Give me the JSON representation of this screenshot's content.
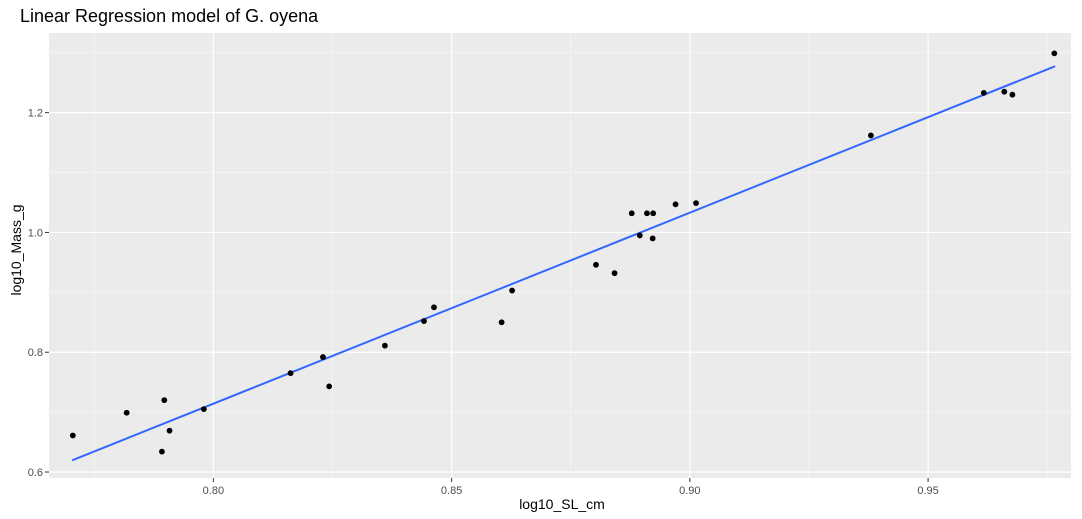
{
  "chart_data": {
    "type": "scatter",
    "title": "Linear Regression model of G. oyena",
    "xlabel": "log10_SL_cm",
    "ylabel": "log10_Mass_g",
    "xlim": [
      0.7655,
      0.98
    ],
    "ylim": [
      0.59,
      1.333
    ],
    "x_ticks": [
      0.8,
      0.85,
      0.9,
      0.95
    ],
    "x_tick_labels": [
      "0.80",
      "0.85",
      "0.90",
      "0.95"
    ],
    "y_ticks": [
      0.6,
      0.8,
      1.0,
      1.2
    ],
    "y_tick_labels": [
      "0.6",
      "0.8",
      "1.0",
      "1.2"
    ],
    "grid": true,
    "legend": "none",
    "colors": {
      "panel_background": "#ebebeb",
      "grid_major": "#ffffff",
      "grid_minor": "#f5f5f5",
      "points": "#000000",
      "fit_line": "#3366ff",
      "tick_text": "#4d4d4d"
    },
    "series": [
      {
        "type": "scatter",
        "points": [
          {
            "x": 0.7705,
            "y": 0.661
          },
          {
            "x": 0.7818,
            "y": 0.699
          },
          {
            "x": 0.7892,
            "y": 0.634
          },
          {
            "x": 0.7897,
            "y": 0.72
          },
          {
            "x": 0.7908,
            "y": 0.669
          },
          {
            "x": 0.798,
            "y": 0.705
          },
          {
            "x": 0.8162,
            "y": 0.765
          },
          {
            "x": 0.823,
            "y": 0.792
          },
          {
            "x": 0.8243,
            "y": 0.743
          },
          {
            "x": 0.836,
            "y": 0.811
          },
          {
            "x": 0.8442,
            "y": 0.852
          },
          {
            "x": 0.8463,
            "y": 0.875
          },
          {
            "x": 0.8605,
            "y": 0.85
          },
          {
            "x": 0.8627,
            "y": 0.903
          },
          {
            "x": 0.8803,
            "y": 0.946
          },
          {
            "x": 0.8842,
            "y": 0.932
          },
          {
            "x": 0.8878,
            "y": 1.032
          },
          {
            "x": 0.8895,
            "y": 0.995
          },
          {
            "x": 0.891,
            "y": 1.032
          },
          {
            "x": 0.8923,
            "y": 1.032
          },
          {
            "x": 0.8922,
            "y": 0.99
          },
          {
            "x": 0.897,
            "y": 1.047
          },
          {
            "x": 0.9013,
            "y": 1.049
          },
          {
            "x": 0.938,
            "y": 1.162
          },
          {
            "x": 0.9617,
            "y": 1.233
          },
          {
            "x": 0.966,
            "y": 1.235
          },
          {
            "x": 0.9677,
            "y": 1.23
          },
          {
            "x": 0.9765,
            "y": 1.299
          }
        ]
      },
      {
        "type": "line",
        "points": [
          {
            "x": 0.7705,
            "y": 0.62
          },
          {
            "x": 0.9765,
            "y": 1.277
          }
        ]
      }
    ]
  }
}
